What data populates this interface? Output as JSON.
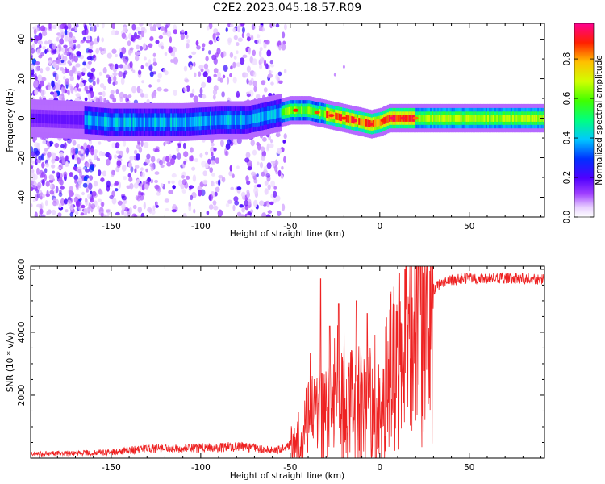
{
  "title": "C2E2.2023.045.18.57.R09",
  "chart_data": [
    {
      "type": "heatmap",
      "xlabel": "Height of straight line (km)",
      "ylabel": "Frequency (Hz)",
      "xlim": [
        -195,
        92
      ],
      "ylim": [
        -50,
        48
      ],
      "xticks": [
        -150,
        -100,
        -50,
        0,
        50
      ],
      "yticks": [
        -40,
        -20,
        0,
        20,
        40
      ],
      "ridge": {
        "x": [
          -195,
          -165,
          -150,
          -130,
          -110,
          -90,
          -75,
          -60,
          -50,
          -40,
          -30,
          -20,
          -10,
          -5,
          0,
          5,
          10,
          30,
          50,
          70,
          92
        ],
        "y": [
          0,
          -1,
          -2,
          -2,
          -2,
          -1,
          -1,
          2,
          4,
          4,
          2,
          0,
          -2,
          -3,
          -2,
          0,
          0,
          0,
          0,
          0,
          0
        ]
      },
      "colorbar": {
        "label": "Normalized spectral amplitude",
        "range": [
          0,
          0.98
        ],
        "ticks": [
          0.0,
          0.2,
          0.4,
          0.6,
          0.8
        ]
      }
    },
    {
      "type": "line",
      "xlabel": "Height of straight line (km)",
      "ylabel": "SNR (10 * v/v)",
      "xlim": [
        -195,
        92
      ],
      "ylim": [
        0,
        6100
      ],
      "xticks": [
        -150,
        -100,
        -50,
        0,
        50
      ],
      "yticks": [
        2000,
        4000,
        6000
      ],
      "color": "#ff0000",
      "trend": {
        "x": [
          -195,
          -150,
          -130,
          -110,
          -80,
          -60,
          -52,
          -47,
          -40,
          -30,
          -20,
          -10,
          -5,
          0,
          5,
          15,
          25,
          35,
          45,
          92
        ],
        "y": [
          100,
          150,
          250,
          250,
          300,
          200,
          250,
          500,
          1200,
          1500,
          1800,
          1900,
          2000,
          1600,
          2800,
          3700,
          5100,
          5600,
          5700,
          5700
        ]
      },
      "spikes": [
        {
          "x": -33,
          "y": 5700
        },
        {
          "x": -28,
          "y": 4200
        },
        {
          "x": -23,
          "y": 4900
        },
        {
          "x": -13,
          "y": 5000
        },
        {
          "x": -7,
          "y": 4600
        },
        {
          "x": 14,
          "y": 6000
        }
      ]
    }
  ]
}
